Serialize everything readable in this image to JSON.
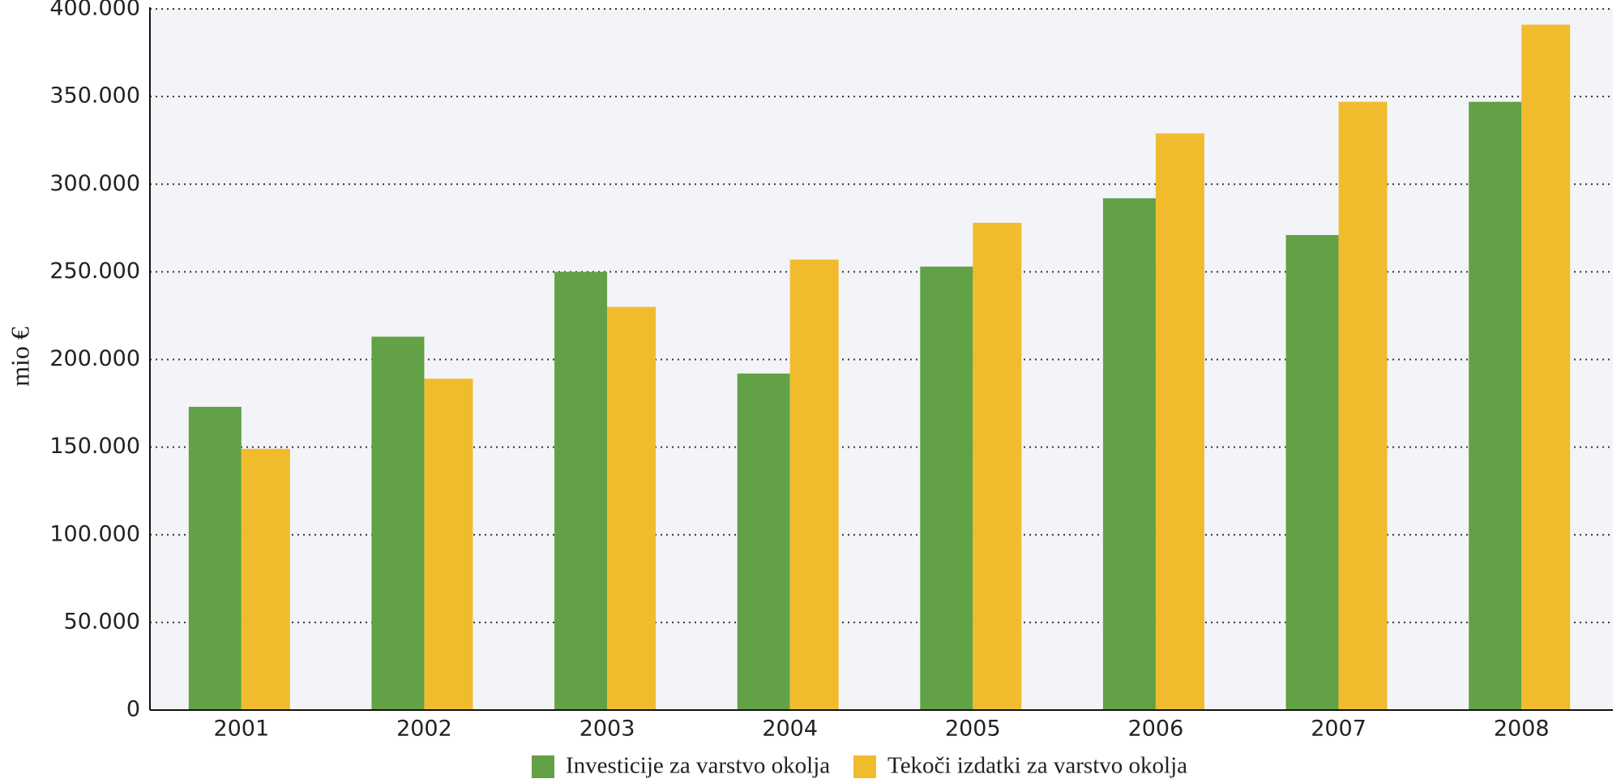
{
  "chart_data": {
    "type": "bar",
    "y_label": "mio €",
    "categories": [
      "2001",
      "2002",
      "2003",
      "2004",
      "2005",
      "2006",
      "2007",
      "2008"
    ],
    "series": [
      {
        "name": "Investicije za varstvo okolja",
        "color": "#62a146",
        "values": [
          173000,
          213000,
          250000,
          192000,
          253000,
          292000,
          271000,
          347000
        ]
      },
      {
        "name": "Tekoči izdatki za varstvo okolja",
        "color": "#f0bc2e",
        "values": [
          149000,
          189000,
          230000,
          257000,
          278000,
          329000,
          347000,
          391000
        ]
      }
    ],
    "ylim": [
      0,
      400000
    ],
    "yticks": [
      0,
      {
        "value": 50000,
        "label": "50.000"
      },
      {
        "value": 100000,
        "label": "100.000"
      },
      {
        "value": 150000,
        "label": "150.000"
      },
      {
        "value": 200000,
        "label": "200.000"
      },
      {
        "value": 250000,
        "label": "250.000"
      },
      {
        "value": 300000,
        "label": "300.000"
      },
      {
        "value": 350000,
        "label": "350.000"
      },
      {
        "value": 400000,
        "label": "400.000"
      }
    ],
    "grid": true,
    "legend": "bottom"
  }
}
